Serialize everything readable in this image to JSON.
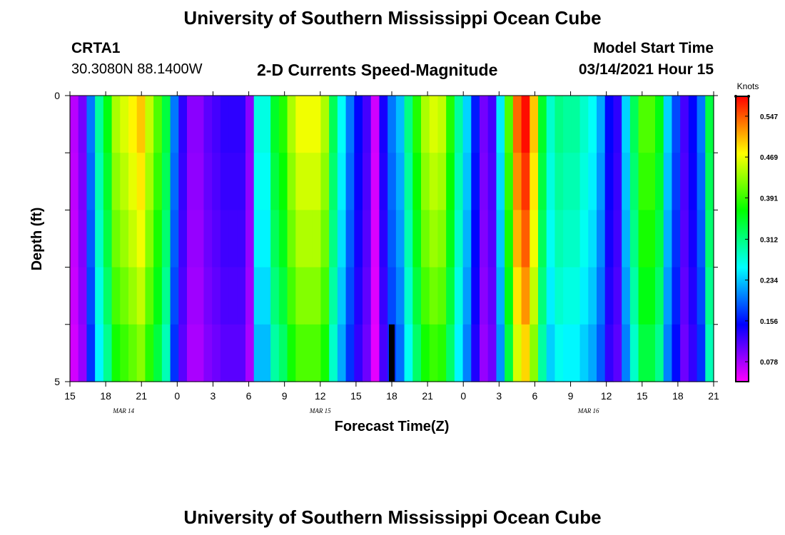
{
  "header": {
    "title": "University of Southern Mississippi Ocean Cube",
    "station_id": "CRTA1",
    "station_coords": "30.3080N 88.1400W",
    "chart_subtitle": "2-D Currents Speed-Magnitude",
    "model_start_label": "Model Start Time",
    "model_start_value": "03/14/2021 Hour 15"
  },
  "footer": {
    "title": "University of Southern Mississippi Ocean Cube"
  },
  "chart_data": {
    "type": "heatmap",
    "title": "2-D Currents Speed-Magnitude",
    "xlabel": "Forecast Time(Z)",
    "ylabel": "Depth (ft)",
    "x_start_hour": 15,
    "x_hours": 54,
    "x_tick_labels": [
      "15",
      "18",
      "21",
      "0",
      "3",
      "6",
      "9",
      "12",
      "15",
      "18",
      "21",
      "0",
      "3",
      "6",
      "9",
      "12",
      "15",
      "18",
      "21"
    ],
    "date_labels": [
      {
        "label": "MAR  14",
        "hour": 4.5
      },
      {
        "label": "MAR  15",
        "hour": 21
      },
      {
        "label": "MAR  16",
        "hour": 43.5
      }
    ],
    "y_tick_labels": [
      "0",
      "5"
    ],
    "ylim": [
      0,
      5
    ],
    "depth_levels": 5,
    "colorbar": {
      "title": "Knots",
      "ticks": [
        0.078,
        0.156,
        0.234,
        0.312,
        0.391,
        0.469,
        0.547
      ],
      "range": [
        0.04,
        0.585
      ]
    },
    "surface_speeds": [
      0.07,
      0.1,
      0.2,
      0.3,
      0.36,
      0.44,
      0.46,
      0.48,
      0.5,
      0.45,
      0.4,
      0.34,
      0.2,
      0.13,
      0.09,
      0.09,
      0.11,
      0.12,
      0.13,
      0.13,
      0.13,
      0.09,
      0.27,
      0.27,
      0.35,
      0.38,
      0.44,
      0.47,
      0.47,
      0.47,
      0.44,
      0.33,
      0.26,
      0.2,
      0.15,
      0.12,
      0.06,
      0.14,
      0.2,
      0.23,
      0.31,
      0.38,
      0.44,
      0.46,
      0.45,
      0.38,
      0.3,
      0.24,
      0.16,
      0.1,
      0.12,
      0.25,
      0.4,
      0.54,
      0.58,
      0.5,
      0.35,
      0.28,
      0.31,
      0.3,
      0.3,
      0.28,
      0.26,
      0.22,
      0.15,
      0.13,
      0.24,
      0.33,
      0.4,
      0.4,
      0.36,
      0.24,
      0.18,
      0.12,
      0.15,
      0.2,
      0.34
    ],
    "depth_factors": [
      1.0,
      0.97,
      0.94,
      0.9,
      0.85
    ],
    "masked_cells": [
      {
        "hour": 27,
        "layer": 4
      }
    ]
  }
}
